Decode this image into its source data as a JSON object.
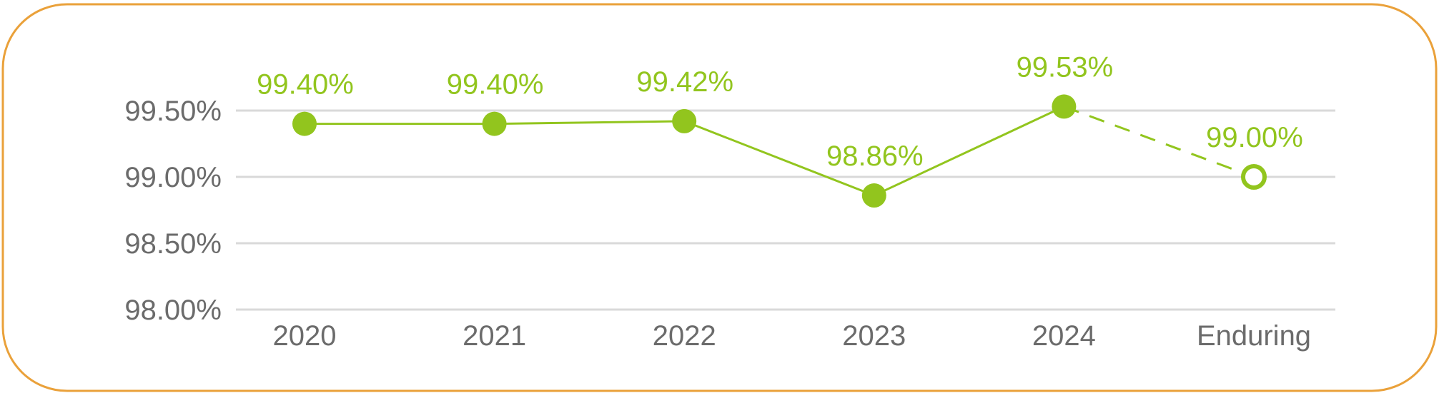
{
  "chart_data": {
    "type": "line",
    "categories": [
      "2020",
      "2021",
      "2022",
      "2023",
      "2024",
      "Enduring"
    ],
    "values": [
      99.4,
      99.4,
      99.42,
      98.86,
      99.53,
      99.0
    ],
    "data_labels": [
      "99.40%",
      "99.40%",
      "99.42%",
      "98.86%",
      "99.53%",
      "99.00%"
    ],
    "projected_from_index": 4,
    "title": "",
    "xlabel": "",
    "ylabel": "",
    "ylim": [
      98.0,
      99.5
    ],
    "yticks": [
      {
        "value": 98.0,
        "label": "98.00%"
      },
      {
        "value": 98.5,
        "label": "98.50%"
      },
      {
        "value": 99.0,
        "label": "99.00%"
      },
      {
        "value": 99.5,
        "label": "99.50%"
      }
    ],
    "grid": true,
    "legend": "none",
    "colors": {
      "series": "#92c51e",
      "axis_text": "#6b6b6b",
      "grid": "#d9d9d9",
      "frame": "#eaa13a"
    }
  }
}
